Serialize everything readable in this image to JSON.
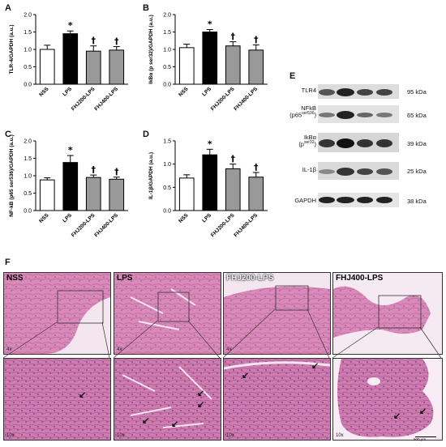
{
  "panels": {
    "a": "A",
    "b": "B",
    "c": "C",
    "d": "D",
    "e": "E",
    "f": "F"
  },
  "chart_data": [
    {
      "type": "bar",
      "id": "A",
      "ylabel": "TLR-4/GAPDH (a.u.)",
      "ylim": [
        0,
        2.0
      ],
      "yticks": [
        "0.0",
        "0.5",
        "1.0",
        "1.5",
        "2.0"
      ],
      "categories": [
        "NSS",
        "LPS",
        "FHJ200-LPS",
        "FHJ400-LPS"
      ],
      "values": [
        1.0,
        1.45,
        0.95,
        0.98
      ],
      "errors": [
        0.12,
        0.08,
        0.15,
        0.1
      ],
      "annotations": [
        "",
        "*",
        "†",
        "†"
      ],
      "colors": [
        "#ffffff",
        "#000000",
        "#999999",
        "#999999"
      ]
    },
    {
      "type": "bar",
      "id": "B",
      "ylabel": "IkBα (p ser32)/GAPDH (a.u.)",
      "ylim": [
        0,
        2.0
      ],
      "yticks": [
        "0.0",
        "0.5",
        "1.0",
        "1.5",
        "2.0"
      ],
      "categories": [
        "NSS",
        "LPS",
        "FHJ200-LPS",
        "FHJ400-LPS"
      ],
      "values": [
        1.05,
        1.5,
        1.1,
        0.98
      ],
      "errors": [
        0.1,
        0.07,
        0.12,
        0.15
      ],
      "annotations": [
        "",
        "*",
        "†",
        "†"
      ],
      "colors": [
        "#ffffff",
        "#000000",
        "#999999",
        "#999999"
      ]
    },
    {
      "type": "bar",
      "id": "C",
      "ylabel": "NF-kB (p65 ser536)/GAPDH (a.u.)",
      "ylim": [
        0,
        2.0
      ],
      "yticks": [
        "0.0",
        "0.5",
        "1.0",
        "1.5",
        "2.0"
      ],
      "categories": [
        "NSS",
        "LPS",
        "FHJ200-LPS",
        "FHJ400-LPS"
      ],
      "values": [
        0.88,
        1.38,
        0.95,
        0.9
      ],
      "errors": [
        0.06,
        0.2,
        0.07,
        0.06
      ],
      "annotations": [
        "",
        "*",
        "†",
        "†"
      ],
      "colors": [
        "#ffffff",
        "#000000",
        "#999999",
        "#999999"
      ]
    },
    {
      "type": "bar",
      "id": "D",
      "ylabel": "IL-1β/GAPDH (a.u.)",
      "ylim": [
        0,
        1.5
      ],
      "yticks": [
        "0.0",
        "0.5",
        "1.0",
        "1.5"
      ],
      "categories": [
        "NSS",
        "LPS",
        "FHJ200-LPS",
        "FHJ400-LPS"
      ],
      "values": [
        0.7,
        1.2,
        0.9,
        0.72
      ],
      "errors": [
        0.07,
        0.12,
        0.1,
        0.1
      ],
      "annotations": [
        "",
        "*",
        "†",
        "†"
      ],
      "colors": [
        "#ffffff",
        "#000000",
        "#999999",
        "#999999"
      ]
    }
  ],
  "blot": {
    "rows": [
      {
        "label": "TLR4",
        "kda": "95 kDa"
      },
      {
        "label": "NFkB",
        "sub": "(p65",
        "sup": "ser536",
        "end": ")",
        "kda": "65 kDa"
      },
      {
        "label": "IkBα",
        "sub": "(p",
        "sup": "ser32",
        "end": ")",
        "kda": "39 kDa"
      },
      {
        "label": "IL-1β",
        "kda": "25 kDa"
      },
      {
        "label": "GAPDH",
        "kda": "38 kDa"
      }
    ]
  },
  "histology": {
    "groups": [
      "NSS",
      "LPS",
      "FHJ200-LPS",
      "FHJ400-LPS"
    ],
    "mag_low": "4x",
    "mag_high": "10x",
    "scale": "500 µm"
  }
}
